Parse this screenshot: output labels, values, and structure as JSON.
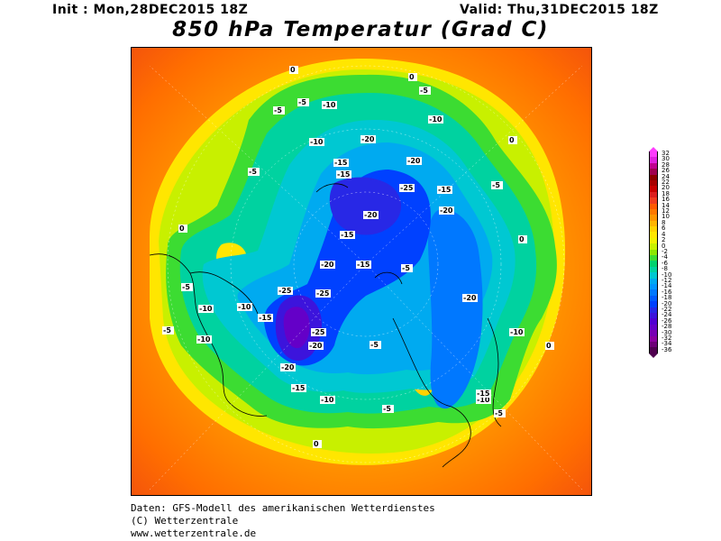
{
  "header": {
    "init": "Init : Mon,28DEC2015 18Z",
    "valid": "Valid: Thu,31DEC2015 18Z",
    "title": "850 hPa Temperatur (Grad C)"
  },
  "colorbar": {
    "levels": [
      32,
      30,
      28,
      26,
      24,
      22,
      20,
      18,
      16,
      14,
      12,
      10,
      8,
      6,
      4,
      2,
      0,
      -2,
      -4,
      -6,
      -8,
      -10,
      -12,
      -14,
      -16,
      -18,
      -20,
      -22,
      -24,
      -26,
      -28,
      -30,
      -32,
      -34,
      -36
    ],
    "colors": [
      "#ff3cff",
      "#e020e0",
      "#c00090",
      "#a00050",
      "#8c0000",
      "#a80000",
      "#c80000",
      "#dc1e1e",
      "#f03c1e",
      "#ff5a00",
      "#ff7800",
      "#ff9600",
      "#ffb400",
      "#ffd200",
      "#ffe600",
      "#f0f000",
      "#c8f000",
      "#8ce600",
      "#3cdc32",
      "#00d26e",
      "#00d2a0",
      "#00c8d2",
      "#00aaf0",
      "#0096ff",
      "#0078ff",
      "#005aff",
      "#0041ff",
      "#2828e6",
      "#3c14dc",
      "#5000d2",
      "#6400c8",
      "#7800b4",
      "#8c00a0",
      "#6e0078",
      "#500050"
    ]
  },
  "map": {
    "contour_labels": [
      "0",
      "-5",
      "-10",
      "-15",
      "-20",
      "-25"
    ]
  },
  "footer": {
    "line1": "Daten: GFS-Modell des amerikanischen Wetterdienstes",
    "line2": "(C) Wetterzentrale",
    "line3": "www.wetterzentrale.de"
  }
}
